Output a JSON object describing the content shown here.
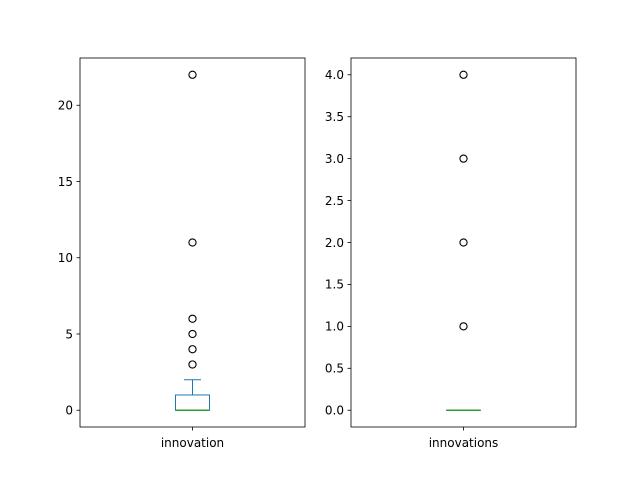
{
  "chart_data": [
    {
      "type": "box",
      "category": "innovation",
      "ylim": [
        -1.1,
        23.1
      ],
      "yticks": [
        0,
        5,
        10,
        15,
        20
      ],
      "ytick_labels": [
        "0",
        "5",
        "10",
        "15",
        "20"
      ],
      "box": {
        "whisker_low": 0,
        "q1": 0,
        "median": 0,
        "q3": 1,
        "whisker_high": 2
      },
      "fliers": [
        3,
        4,
        5,
        6,
        11,
        22
      ],
      "grid": false,
      "colors": {
        "box": "#1f77b4",
        "median": "#2ca02c",
        "flier": "#000000"
      }
    },
    {
      "type": "box",
      "category": "innovations",
      "ylim": [
        -0.2,
        4.2
      ],
      "yticks": [
        0.0,
        0.5,
        1.0,
        1.5,
        2.0,
        2.5,
        3.0,
        3.5,
        4.0
      ],
      "ytick_labels": [
        "0.0",
        "0.5",
        "1.0",
        "1.5",
        "2.0",
        "2.5",
        "3.0",
        "3.5",
        "4.0"
      ],
      "box": {
        "whisker_low": 0,
        "q1": 0,
        "median": 0,
        "q3": 0,
        "whisker_high": 0
      },
      "fliers": [
        1,
        2,
        3,
        4
      ],
      "grid": false,
      "colors": {
        "box": "#1f77b4",
        "median": "#2ca02c",
        "flier": "#000000"
      }
    }
  ]
}
